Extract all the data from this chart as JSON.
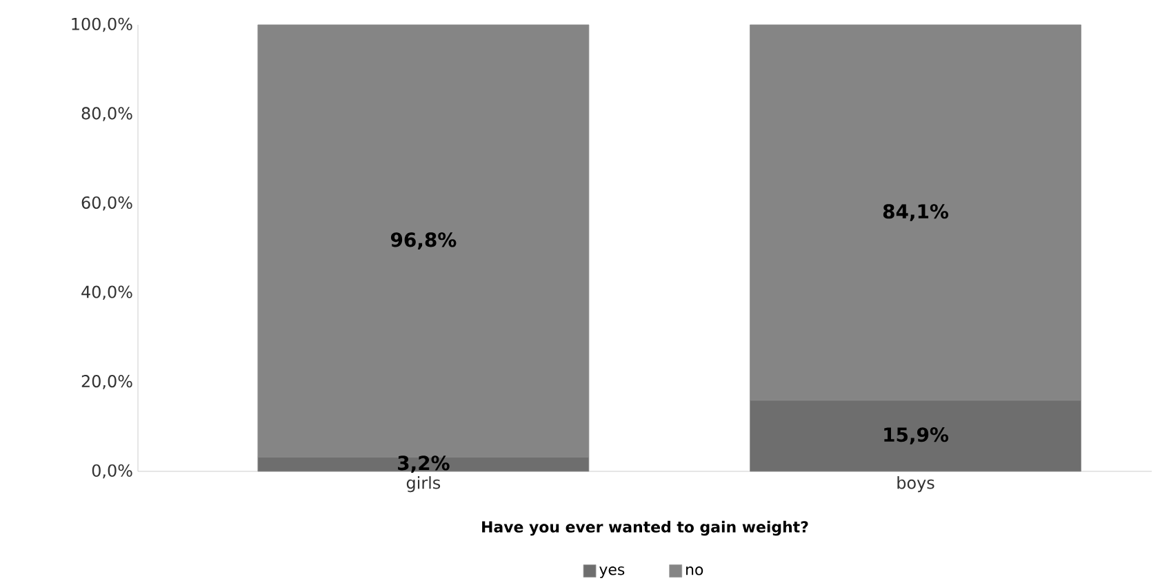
{
  "chart_data": {
    "type": "bar",
    "stacked": true,
    "xlabel": "Have you ever wanted to gain weight?",
    "categories": [
      "girls",
      "boys"
    ],
    "series": [
      {
        "name": "yes",
        "color": "#6e6e6e",
        "values": [
          3.2,
          15.9
        ],
        "value_labels": [
          "3,2%",
          "15,9%"
        ]
      },
      {
        "name": "no",
        "color": "#858585",
        "values": [
          96.8,
          84.1
        ],
        "value_labels": [
          "96,8%",
          "84,1%"
        ]
      }
    ],
    "ylim": [
      0,
      100
    ],
    "yticks": [
      {
        "value": 0,
        "label": "0,0%"
      },
      {
        "value": 20,
        "label": "20,0%"
      },
      {
        "value": 40,
        "label": "40,0%"
      },
      {
        "value": 60,
        "label": "60,0%"
      },
      {
        "value": 80,
        "label": "80,0%"
      },
      {
        "value": 100,
        "label": "100,0%"
      }
    ],
    "legend": "bottom"
  }
}
